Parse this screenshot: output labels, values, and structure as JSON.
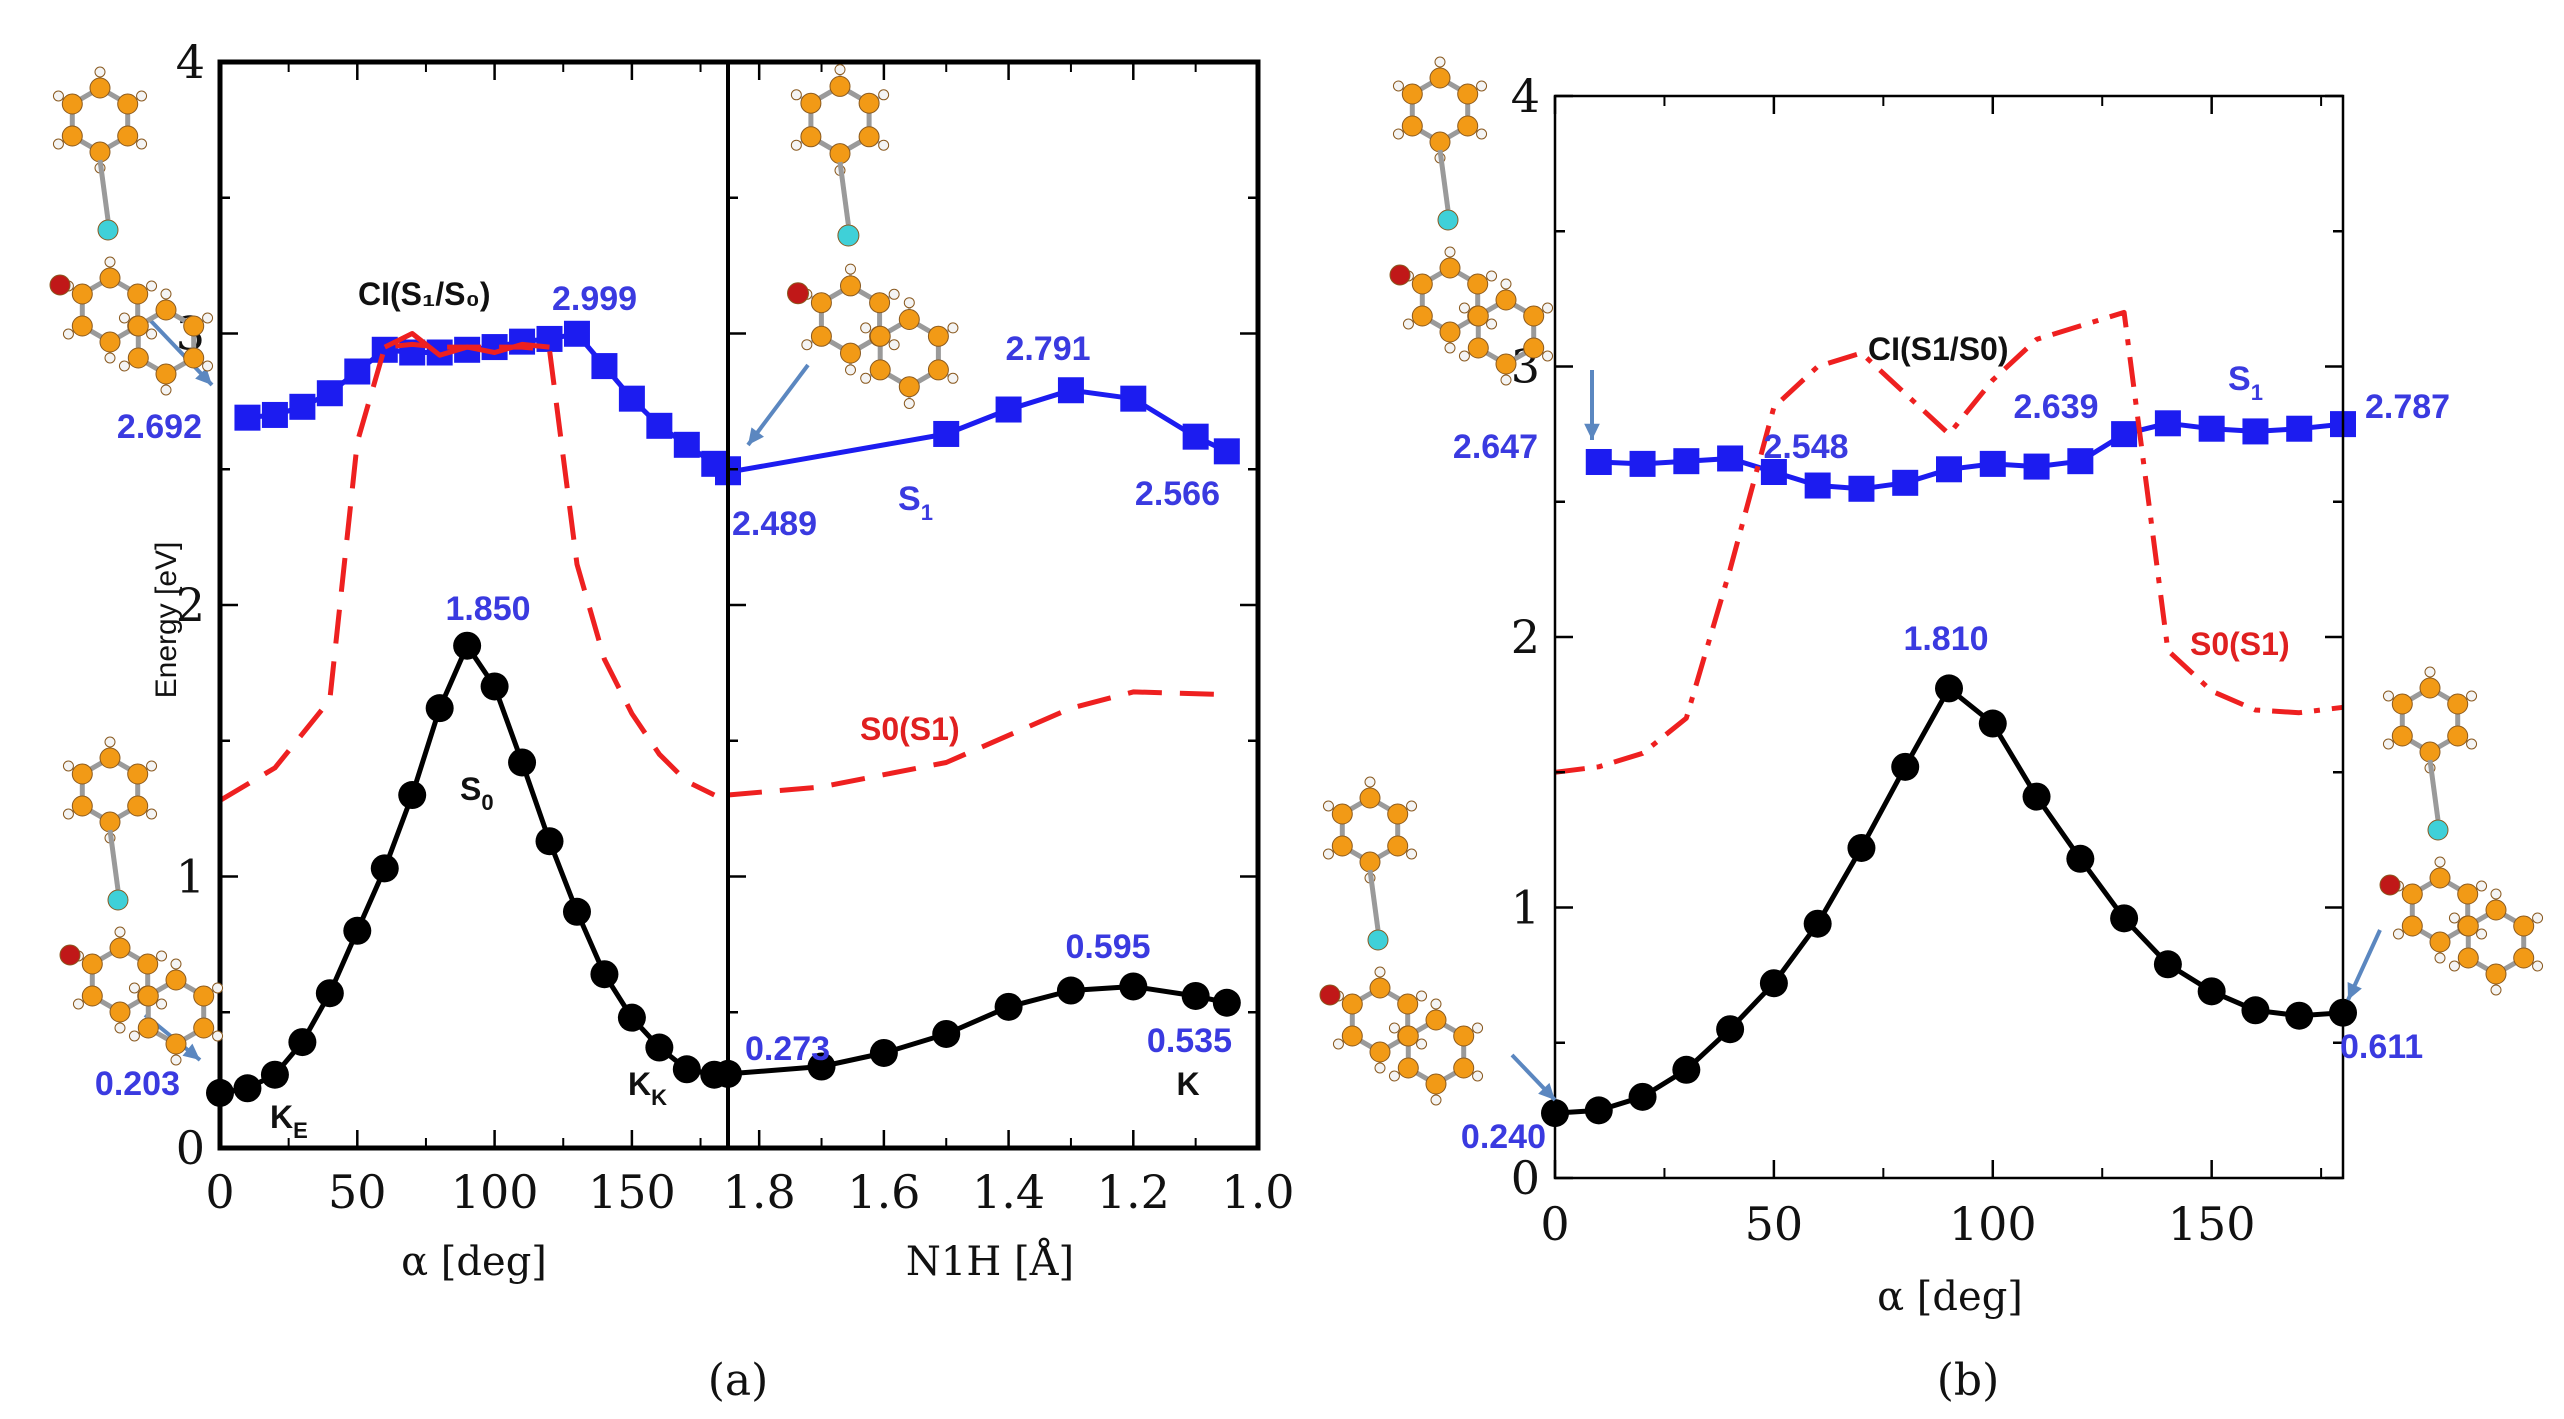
{
  "chart_data": [
    {
      "panel": "a-left",
      "type": "line",
      "xlabel": "α  [deg]",
      "ylabel": "Energy [eV]",
      "xlim": [
        0,
        185
      ],
      "ylim": [
        0,
        4
      ],
      "xticks": [
        "0",
        "50",
        "100",
        "150"
      ],
      "yticks": [
        "0",
        "1",
        "2",
        "3",
        "4"
      ],
      "series": [
        {
          "name": "S1",
          "color": "#1c1cf0",
          "marker": "square",
          "x": [
            10,
            20,
            30,
            40,
            50,
            60,
            70,
            80,
            90,
            100,
            110,
            120,
            130,
            140,
            150,
            160,
            170,
            180,
            185
          ],
          "y": [
            2.69,
            2.7,
            2.73,
            2.78,
            2.86,
            2.94,
            2.93,
            2.93,
            2.94,
            2.95,
            2.97,
            2.98,
            2.999,
            2.88,
            2.76,
            2.66,
            2.59,
            2.52,
            2.5
          ]
        },
        {
          "name": "S0(S1)",
          "color": "#ee2020",
          "style": "dashed",
          "x": [
            0,
            20,
            40,
            50,
            60,
            70,
            80,
            90,
            100,
            110,
            120,
            130,
            140,
            150,
            160,
            170,
            180
          ],
          "y": [
            1.28,
            1.4,
            1.65,
            2.6,
            2.95,
            2.96,
            2.95,
            2.95,
            2.95,
            2.95,
            2.94,
            2.15,
            1.8,
            1.6,
            1.45,
            1.35,
            1.3
          ]
        },
        {
          "name": "CI(S1/S0)",
          "color": "#ee2020",
          "style": "solid",
          "x": [
            60,
            70,
            80,
            90,
            100,
            110,
            120
          ],
          "y": [
            2.95,
            3.0,
            2.92,
            2.95,
            2.93,
            2.96,
            2.95
          ]
        },
        {
          "name": "S0",
          "color": "#000000",
          "marker": "circle",
          "x": [
            0,
            10,
            20,
            30,
            40,
            50,
            60,
            70,
            80,
            90,
            100,
            110,
            120,
            130,
            140,
            150,
            160,
            170,
            180
          ],
          "y": [
            0.203,
            0.22,
            0.27,
            0.39,
            0.57,
            0.8,
            1.03,
            1.3,
            1.62,
            1.85,
            1.7,
            1.42,
            1.13,
            0.87,
            0.64,
            0.48,
            0.37,
            0.29,
            0.27
          ]
        }
      ],
      "labels": {
        "s1_start": "2.692",
        "s1_peak": "2.999",
        "s0_peak": "1.850",
        "s0_start": "0.203",
        "ci": "CI(S1/S0)",
        "s0_label": "S0",
        "ke": "KE",
        "kk": "KK"
      }
    },
    {
      "panel": "a-right",
      "type": "line",
      "xlabel": "N1H [Å]",
      "xlim": [
        1.85,
        1.0
      ],
      "ylim": [
        0,
        4
      ],
      "xticks": [
        "1.8",
        "1.6",
        "1.4",
        "1.2",
        "1.0"
      ],
      "series": [
        {
          "name": "S1",
          "color": "#1c1cf0",
          "marker": "square",
          "x": [
            1.85,
            1.5,
            1.4,
            1.3,
            1.2,
            1.1,
            1.05
          ],
          "y": [
            2.489,
            2.63,
            2.72,
            2.791,
            2.76,
            2.62,
            2.566
          ]
        },
        {
          "name": "S0(S1)",
          "color": "#ee2020",
          "style": "dashed",
          "x": [
            1.85,
            1.7,
            1.5,
            1.3,
            1.2,
            1.05
          ],
          "y": [
            1.3,
            1.33,
            1.42,
            1.62,
            1.68,
            1.67
          ]
        },
        {
          "name": "S0",
          "color": "#000000",
          "marker": "circle",
          "x": [
            1.85,
            1.7,
            1.6,
            1.5,
            1.4,
            1.3,
            1.2,
            1.1,
            1.05
          ],
          "y": [
            0.273,
            0.3,
            0.35,
            0.42,
            0.52,
            0.58,
            0.595,
            0.56,
            0.535
          ]
        }
      ],
      "labels": {
        "s1_start": "2.489",
        "s1_peak": "2.791",
        "s1_end": "2.566",
        "s1_name": "S1",
        "s0s1": "S0(S1)",
        "s0_start": "0.273",
        "s0_peak": "0.595",
        "s0_end": "0.535",
        "k": "K"
      }
    },
    {
      "panel": "b",
      "type": "line",
      "xlabel": "α  [deg]",
      "xlim": [
        0,
        180
      ],
      "ylim": [
        0,
        4
      ],
      "xticks": [
        "0",
        "50",
        "100",
        "150"
      ],
      "yticks": [
        "0",
        "1",
        "2",
        "3",
        "4"
      ],
      "series": [
        {
          "name": "S1",
          "color": "#1c1cf0",
          "marker": "square",
          "x": [
            10,
            20,
            30,
            40,
            50,
            60,
            70,
            80,
            90,
            100,
            110,
            120,
            130,
            140,
            150,
            160,
            170,
            180
          ],
          "y": [
            2.647,
            2.64,
            2.65,
            2.66,
            2.61,
            2.56,
            2.548,
            2.57,
            2.62,
            2.64,
            2.63,
            2.65,
            2.75,
            2.79,
            2.77,
            2.76,
            2.77,
            2.787
          ]
        },
        {
          "name": "S0(S1) / CI(S1/S0)",
          "color": "#ee2020",
          "style": "dashdot",
          "x": [
            0,
            10,
            20,
            30,
            40,
            50,
            60,
            70,
            80,
            90,
            100,
            110,
            120,
            130,
            140,
            150,
            160,
            170,
            180
          ],
          "y": [
            1.5,
            1.52,
            1.57,
            1.7,
            2.25,
            2.85,
            3.0,
            3.05,
            2.9,
            2.75,
            2.95,
            3.1,
            3.15,
            3.2,
            1.95,
            1.8,
            1.73,
            1.72,
            1.74
          ]
        },
        {
          "name": "S0",
          "color": "#000000",
          "marker": "circle",
          "x": [
            0,
            10,
            20,
            30,
            40,
            50,
            60,
            70,
            80,
            90,
            100,
            110,
            120,
            130,
            140,
            150,
            160,
            170,
            180
          ],
          "y": [
            0.24,
            0.25,
            0.3,
            0.4,
            0.55,
            0.72,
            0.94,
            1.22,
            1.52,
            1.81,
            1.68,
            1.41,
            1.18,
            0.96,
            0.79,
            0.69,
            0.62,
            0.6,
            0.611
          ]
        }
      ],
      "labels": {
        "s1_start": "2.647",
        "s1_min": "2.548",
        "s1_mid": "2.639",
        "s1_end": "2.787",
        "s1_name": "S1",
        "ci": "CI(S1/S0)",
        "s0s1": "S0(S1)",
        "s0_peak": "1.810",
        "s0_start": "0.240",
        "s0_end": "0.611"
      }
    }
  ],
  "captions": {
    "a": "(a)",
    "b": "(b)"
  }
}
